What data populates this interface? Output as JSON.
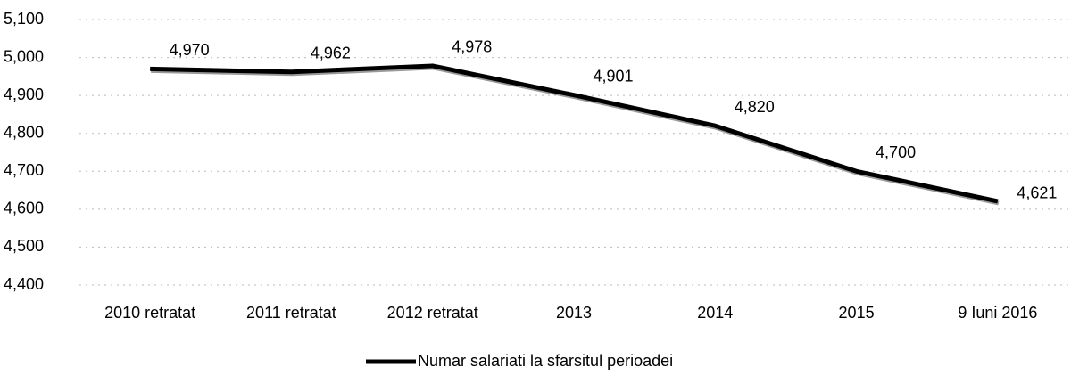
{
  "chart_data": {
    "type": "line",
    "categories": [
      "2010 retratat",
      "2011 retratat",
      "2012 retratat",
      "2013",
      "2014",
      "2015",
      "9 Iuni 2016"
    ],
    "series": [
      {
        "name": "Numar salariati la sfarsitul perioadei",
        "color": "#000000",
        "values": [
          4970,
          4962,
          4978,
          4901,
          4820,
          4700,
          4621
        ],
        "value_labels": [
          "4,970",
          "4,962",
          "4,978",
          "4,901",
          "4,820",
          "4,700",
          "4,621"
        ]
      }
    ],
    "ylim": [
      4400,
      5100
    ],
    "yticks": [
      {
        "value": 4400,
        "label": "4,400"
      },
      {
        "value": 4500,
        "label": "4,500"
      },
      {
        "value": 4600,
        "label": "4,600"
      },
      {
        "value": 4700,
        "label": "4,700"
      },
      {
        "value": 4800,
        "label": "4,800"
      },
      {
        "value": 4900,
        "label": "4,900"
      },
      {
        "value": 5000,
        "label": "5,000"
      },
      {
        "value": 5100,
        "label": "5,100"
      }
    ],
    "grid": true,
    "legend": "bottom"
  }
}
